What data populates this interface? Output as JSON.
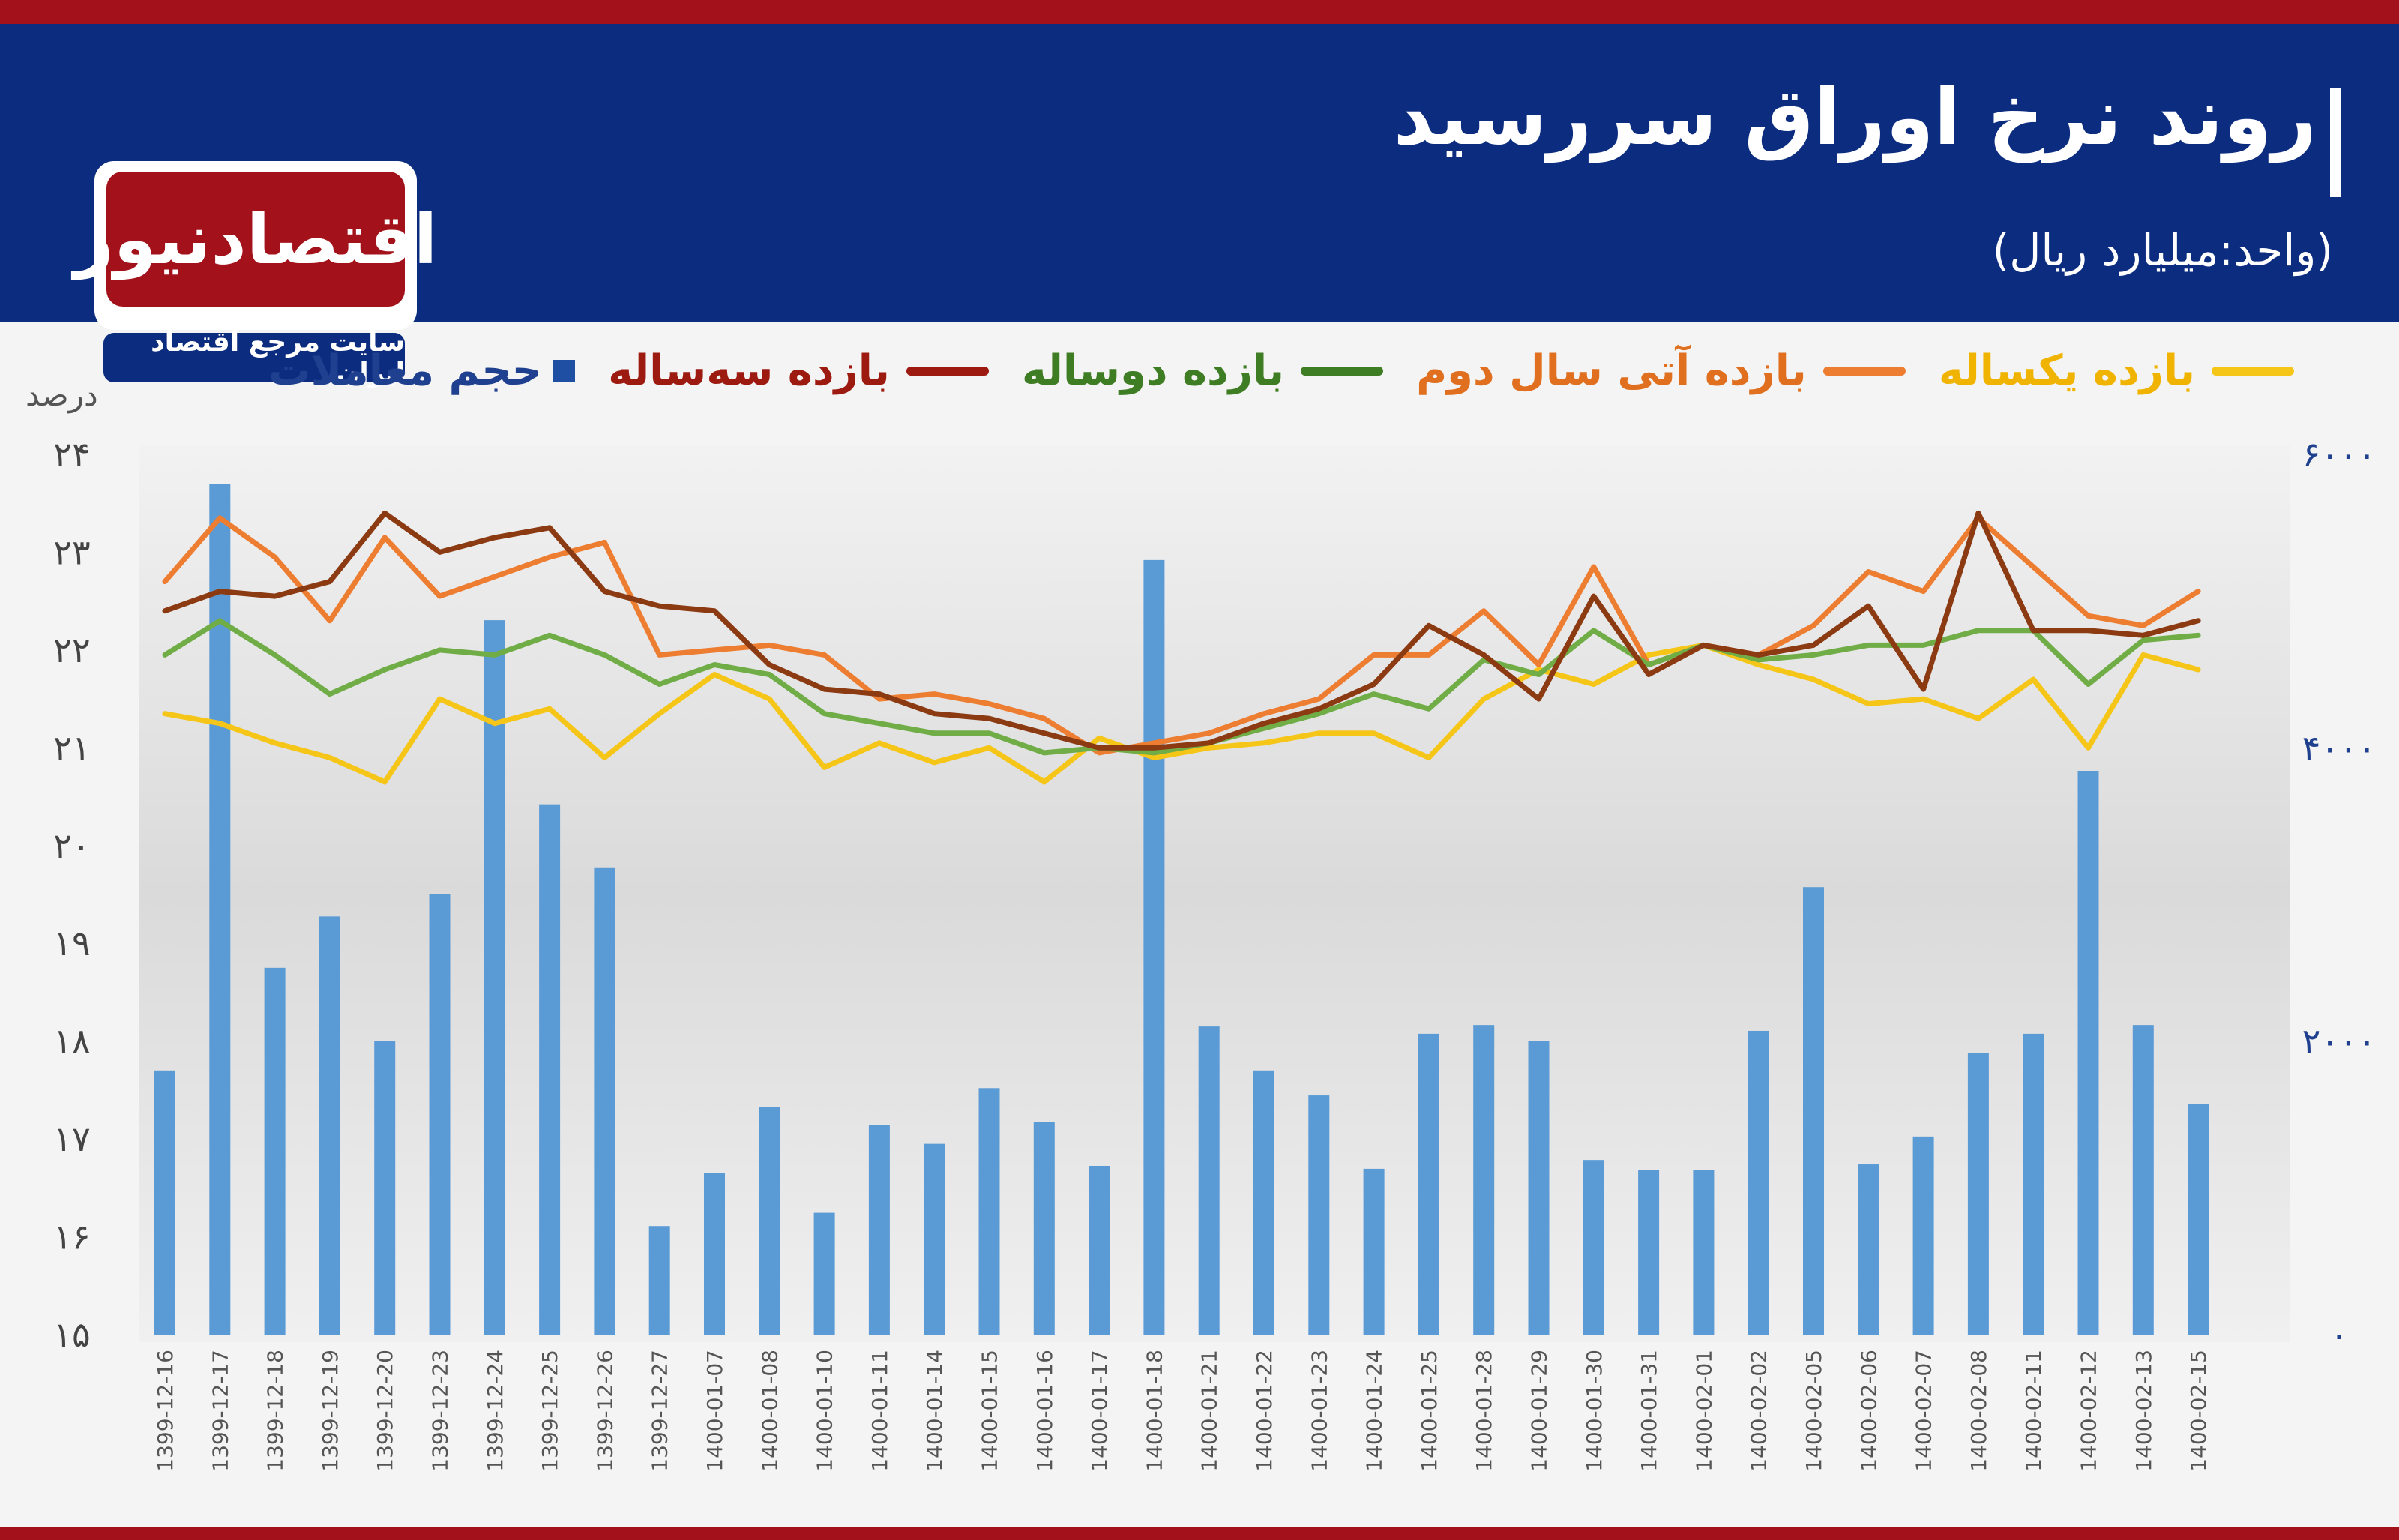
{
  "header": {
    "title": "روند نرخ اوراق سررسید",
    "unit": "(واحد:میلیارد ریال)"
  },
  "logo": {
    "name": "اقتصادنیوز",
    "tagline": "سایت مرجع اقتصاد ایران"
  },
  "colors": {
    "header_bg": "#0c2c80",
    "brand_red": "#a3121a",
    "bars": "#5b9bd5",
    "one_year": "#f5c518",
    "future_second_year": "#ed7d31",
    "two_year": "#70ad47",
    "three_year": "#8b3a12"
  },
  "chart_data": {
    "type": "bar+line",
    "title": "روند نرخ اوراق سررسید",
    "subtitle": "(واحد:میلیارد ریال)",
    "ylabel_left": "درصد",
    "ylim_left": [
      15,
      24
    ],
    "ylim_right": [
      0,
      6000
    ],
    "yticks_left": [
      "۲۴",
      "۲۳",
      "۲۲",
      "۲۱",
      "۲۰",
      "۱۹",
      "۱۸",
      "۱۷",
      "۱۶",
      "۱۵"
    ],
    "yticks_right": [
      "۶۰۰۰",
      "۴۰۰۰",
      "۲۰۰۰",
      "۰"
    ],
    "grid": false,
    "legend_position": "top",
    "categories": [
      "1399-12-16",
      "1399-12-17",
      "1399-12-18",
      "1399-12-19",
      "1399-12-20",
      "1399-12-23",
      "1399-12-24",
      "1399-12-25",
      "1399-12-26",
      "1399-12-27",
      "1400-01-07",
      "1400-01-08",
      "1400-01-10",
      "1400-01-11",
      "1400-01-14",
      "1400-01-15",
      "1400-01-16",
      "1400-01-17",
      "1400-01-18",
      "1400-01-21",
      "1400-01-22",
      "1400-01-23",
      "1400-01-24",
      "1400-01-25",
      "1400-01-28",
      "1400-01-29",
      "1400-01-30",
      "1400-01-31",
      "1400-02-01",
      "1400-02-02",
      "1400-02-05",
      "1400-02-06",
      "1400-02-07",
      "1400-02-08",
      "1400-02-11",
      "1400-02-12",
      "1400-02-13",
      "1400-02-15"
    ],
    "bar_series": {
      "name": "حجم معاملات",
      "values": [
        1800,
        5800,
        2500,
        2850,
        2000,
        3000,
        4870,
        3610,
        3180,
        740,
        1100,
        1550,
        830,
        1430,
        1300,
        1680,
        1450,
        1150,
        5280,
        2100,
        1800,
        1630,
        1130,
        2050,
        2110,
        2000,
        1190,
        1120,
        1120,
        2070,
        3050,
        1160,
        1350,
        1920,
        2050,
        3840,
        2110,
        1570
      ]
    },
    "series": [
      {
        "name": "بازده یکساله",
        "values": [
          21.35,
          21.25,
          21.05,
          20.9,
          20.65,
          21.5,
          21.25,
          21.4,
          20.9,
          21.35,
          21.75,
          21.5,
          20.8,
          21.05,
          20.85,
          21.0,
          20.65,
          21.1,
          20.9,
          21.0,
          21.05,
          21.15,
          21.15,
          20.9,
          21.5,
          21.8,
          21.65,
          21.95,
          22.05,
          21.85,
          21.7,
          21.45,
          21.5,
          21.3,
          21.7,
          21.0,
          21.95,
          21.8
        ]
      },
      {
        "name": "بازده آتی سال دوم",
        "values": [
          22.7,
          23.35,
          22.95,
          22.3,
          23.15,
          22.55,
          22.75,
          22.95,
          23.1,
          21.95,
          22.0,
          22.05,
          21.95,
          21.5,
          21.55,
          21.45,
          21.3,
          20.95,
          21.05,
          21.15,
          21.35,
          21.5,
          21.95,
          21.95,
          22.4,
          21.85,
          22.85,
          21.85,
          22.05,
          21.95,
          22.25,
          22.8,
          22.6,
          23.35,
          22.85,
          22.35,
          22.25,
          22.6
        ]
      },
      {
        "name": "بازده دوسالاه",
        "values": [
          21.95,
          22.3,
          21.95,
          21.55,
          21.8,
          22.0,
          21.95,
          22.15,
          21.95,
          21.65,
          21.85,
          21.75,
          21.35,
          21.25,
          21.15,
          21.15,
          20.95,
          21.0,
          20.95,
          21.05,
          21.2,
          21.35,
          21.55,
          21.4,
          21.9,
          21.75,
          22.2,
          21.85,
          22.05,
          21.9,
          21.95,
          22.05,
          22.05,
          22.2,
          22.2,
          21.65,
          22.1,
          22.15
        ]
      },
      {
        "name": "بازده سه‌ساله",
        "values": [
          22.4,
          22.6,
          22.55,
          22.7,
          23.4,
          23.0,
          23.15,
          23.25,
          22.6,
          22.45,
          22.4,
          21.85,
          21.6,
          21.55,
          21.35,
          21.3,
          21.15,
          21.0,
          21.0,
          21.05,
          21.25,
          21.4,
          21.65,
          22.25,
          21.95,
          21.5,
          22.55,
          21.75,
          22.05,
          21.95,
          22.05,
          22.45,
          21.6,
          23.4,
          22.2,
          22.2,
          22.15,
          22.3
        ]
      }
    ]
  },
  "legend": [
    {
      "label": "بازده یکساله"
    },
    {
      "label": "بازده آتی سال دوم"
    },
    {
      "label": "بازده دوساله"
    },
    {
      "label": "بازده سه‌ساله"
    },
    {
      "label": "حجم معاملات"
    }
  ]
}
